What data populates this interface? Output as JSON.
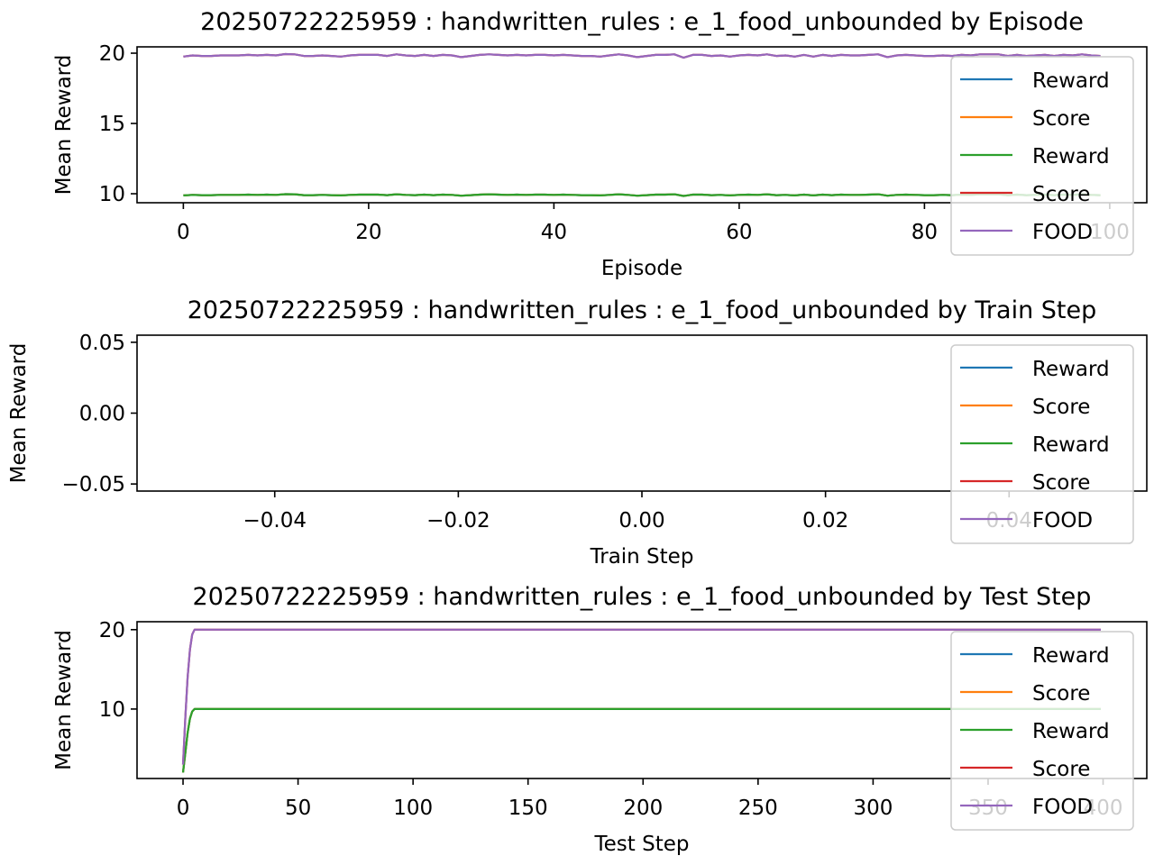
{
  "colors": {
    "Reward_1": "#1f77b4",
    "Score_1": "#ff7f0e",
    "Reward_2": "#2ca02c",
    "Score_2": "#d62728",
    "FOOD": "#9467bd"
  },
  "chart_data": [
    {
      "type": "line",
      "title": "20250722225959 : handwritten_rules : e_1_food_unbounded by Episode",
      "xlabel": "Episode",
      "ylabel": "Mean Reward",
      "xlim": [
        -5,
        104
      ],
      "ylim": [
        9.36,
        20.45
      ],
      "xticks": [
        0,
        20,
        40,
        60,
        80,
        100
      ],
      "xtick_labels": [
        "0",
        "20",
        "40",
        "60",
        "80",
        "100"
      ],
      "yticks": [
        10,
        15,
        20
      ],
      "ytick_labels": [
        "10",
        "15",
        "20"
      ],
      "legend": "upper-right",
      "grid": false,
      "x_start": 0,
      "series": [
        {
          "name": "Reward",
          "color": "#1f77b4",
          "values": "low"
        },
        {
          "name": "Score",
          "color": "#ff7f0e",
          "values": "low"
        },
        {
          "name": "Reward",
          "color": "#2ca02c",
          "values": "low"
        },
        {
          "name": "Score",
          "color": "#d62728",
          "values": "high"
        },
        {
          "name": "FOOD",
          "color": "#9467bd",
          "values": "high"
        }
      ],
      "low": [
        9.88,
        9.92,
        9.9,
        9.9,
        9.92,
        9.92,
        9.92,
        9.94,
        9.92,
        9.94,
        9.92,
        9.97,
        9.96,
        9.9,
        9.9,
        9.92,
        9.9,
        9.88,
        9.92,
        9.94,
        9.94,
        9.94,
        9.9,
        9.96,
        9.92,
        9.9,
        9.94,
        9.9,
        9.94,
        9.92,
        9.86,
        9.9,
        9.94,
        9.96,
        9.94,
        9.92,
        9.94,
        9.92,
        9.94,
        9.94,
        9.92,
        9.94,
        9.92,
        9.9,
        9.9,
        9.88,
        9.92,
        9.96,
        9.92,
        9.86,
        9.9,
        9.94,
        9.94,
        9.96,
        9.84,
        9.94,
        9.94,
        9.9,
        9.92,
        9.88,
        9.92,
        9.94,
        9.92,
        9.96,
        9.9,
        9.92,
        9.88,
        9.94,
        9.88,
        9.94,
        9.9,
        9.94,
        9.92,
        9.92,
        9.94,
        9.96,
        9.86,
        9.92,
        9.94,
        9.92,
        9.9,
        9.9,
        9.92,
        9.9,
        9.94,
        9.92,
        9.96,
        9.96,
        9.96,
        9.9,
        9.94,
        9.9,
        9.92,
        9.94,
        9.9,
        9.94,
        9.92,
        9.96,
        9.92,
        9.9
      ],
      "high": [
        19.76,
        19.84,
        19.8,
        19.8,
        19.84,
        19.84,
        19.84,
        19.88,
        19.84,
        19.88,
        19.84,
        19.94,
        19.92,
        19.8,
        19.8,
        19.84,
        19.8,
        19.76,
        19.84,
        19.88,
        19.88,
        19.88,
        19.8,
        19.92,
        19.84,
        19.8,
        19.88,
        19.8,
        19.88,
        19.84,
        19.72,
        19.8,
        19.88,
        19.92,
        19.88,
        19.84,
        19.88,
        19.84,
        19.88,
        19.88,
        19.84,
        19.88,
        19.84,
        19.8,
        19.8,
        19.76,
        19.84,
        19.92,
        19.84,
        19.72,
        19.8,
        19.88,
        19.88,
        19.92,
        19.68,
        19.88,
        19.88,
        19.8,
        19.84,
        19.76,
        19.84,
        19.88,
        19.84,
        19.92,
        19.8,
        19.84,
        19.76,
        19.88,
        19.76,
        19.88,
        19.8,
        19.88,
        19.84,
        19.84,
        19.88,
        19.92,
        19.72,
        19.84,
        19.88,
        19.84,
        19.8,
        19.8,
        19.84,
        19.8,
        19.88,
        19.84,
        19.92,
        19.92,
        19.92,
        19.8,
        19.88,
        19.8,
        19.84,
        19.88,
        19.8,
        19.88,
        19.84,
        19.92,
        19.84,
        19.8
      ]
    },
    {
      "type": "line",
      "title": "20250722225959 : handwritten_rules : e_1_food_unbounded by Train Step",
      "xlabel": "Train Step",
      "ylabel": "Mean Reward",
      "xlim": [
        -0.055,
        0.055
      ],
      "ylim": [
        -0.055,
        0.055
      ],
      "xticks": [
        -0.04,
        -0.02,
        0,
        0.02,
        0.04
      ],
      "xtick_labels": [
        "−0.04",
        "−0.02",
        "0.00",
        "0.02",
        "0.04"
      ],
      "yticks": [
        -0.05,
        0,
        0.05
      ],
      "ytick_labels": [
        "−0.05",
        "0.00",
        "0.05"
      ],
      "legend": "upper-right",
      "grid": false,
      "series": [
        {
          "name": "Reward",
          "color": "#1f77b4",
          "x": [],
          "y": []
        },
        {
          "name": "Score",
          "color": "#ff7f0e",
          "x": [],
          "y": []
        },
        {
          "name": "Reward",
          "color": "#2ca02c",
          "x": [],
          "y": []
        },
        {
          "name": "Score",
          "color": "#d62728",
          "x": [],
          "y": []
        },
        {
          "name": "FOOD",
          "color": "#9467bd",
          "x": [],
          "y": []
        }
      ]
    },
    {
      "type": "line",
      "title": "20250722225959 : handwritten_rules : e_1_food_unbounded by Test Step",
      "xlabel": "Test Step",
      "ylabel": "Mean Reward",
      "xlim": [
        -20,
        419
      ],
      "ylim": [
        1.25,
        21.0
      ],
      "xticks": [
        0,
        50,
        100,
        150,
        200,
        250,
        300,
        350,
        400
      ],
      "xtick_labels": [
        "0",
        "50",
        "100",
        "150",
        "200",
        "250",
        "300",
        "350",
        "400"
      ],
      "yticks": [
        10,
        20
      ],
      "ytick_labels": [
        "10",
        "20"
      ],
      "legend": "upper-right",
      "grid": false,
      "series": [
        {
          "name": "Reward",
          "color": "#1f77b4",
          "x": [
            0,
            1,
            2,
            3,
            4,
            5,
            6,
            399
          ],
          "y": [
            2,
            4.5,
            7,
            8.8,
            9.7,
            10,
            10,
            10
          ]
        },
        {
          "name": "Score",
          "color": "#ff7f0e",
          "x": [
            0,
            1,
            2,
            3,
            4,
            5,
            6,
            399
          ],
          "y": [
            2,
            4.5,
            7,
            8.8,
            9.7,
            10,
            10,
            10
          ]
        },
        {
          "name": "Reward",
          "color": "#2ca02c",
          "x": [
            0,
            1,
            2,
            3,
            4,
            5,
            6,
            399
          ],
          "y": [
            2,
            4.5,
            7,
            8.8,
            9.7,
            10,
            10,
            10
          ]
        },
        {
          "name": "Score",
          "color": "#d62728",
          "x": [
            0,
            1,
            2,
            3,
            4,
            5,
            6,
            399
          ],
          "y": [
            3,
            9,
            14,
            17.5,
            19.4,
            20,
            20,
            20
          ]
        },
        {
          "name": "FOOD",
          "color": "#9467bd",
          "x": [
            0,
            1,
            2,
            3,
            4,
            5,
            6,
            399
          ],
          "y": [
            3,
            9,
            14,
            17.5,
            19.4,
            20,
            20,
            20
          ]
        }
      ]
    }
  ]
}
